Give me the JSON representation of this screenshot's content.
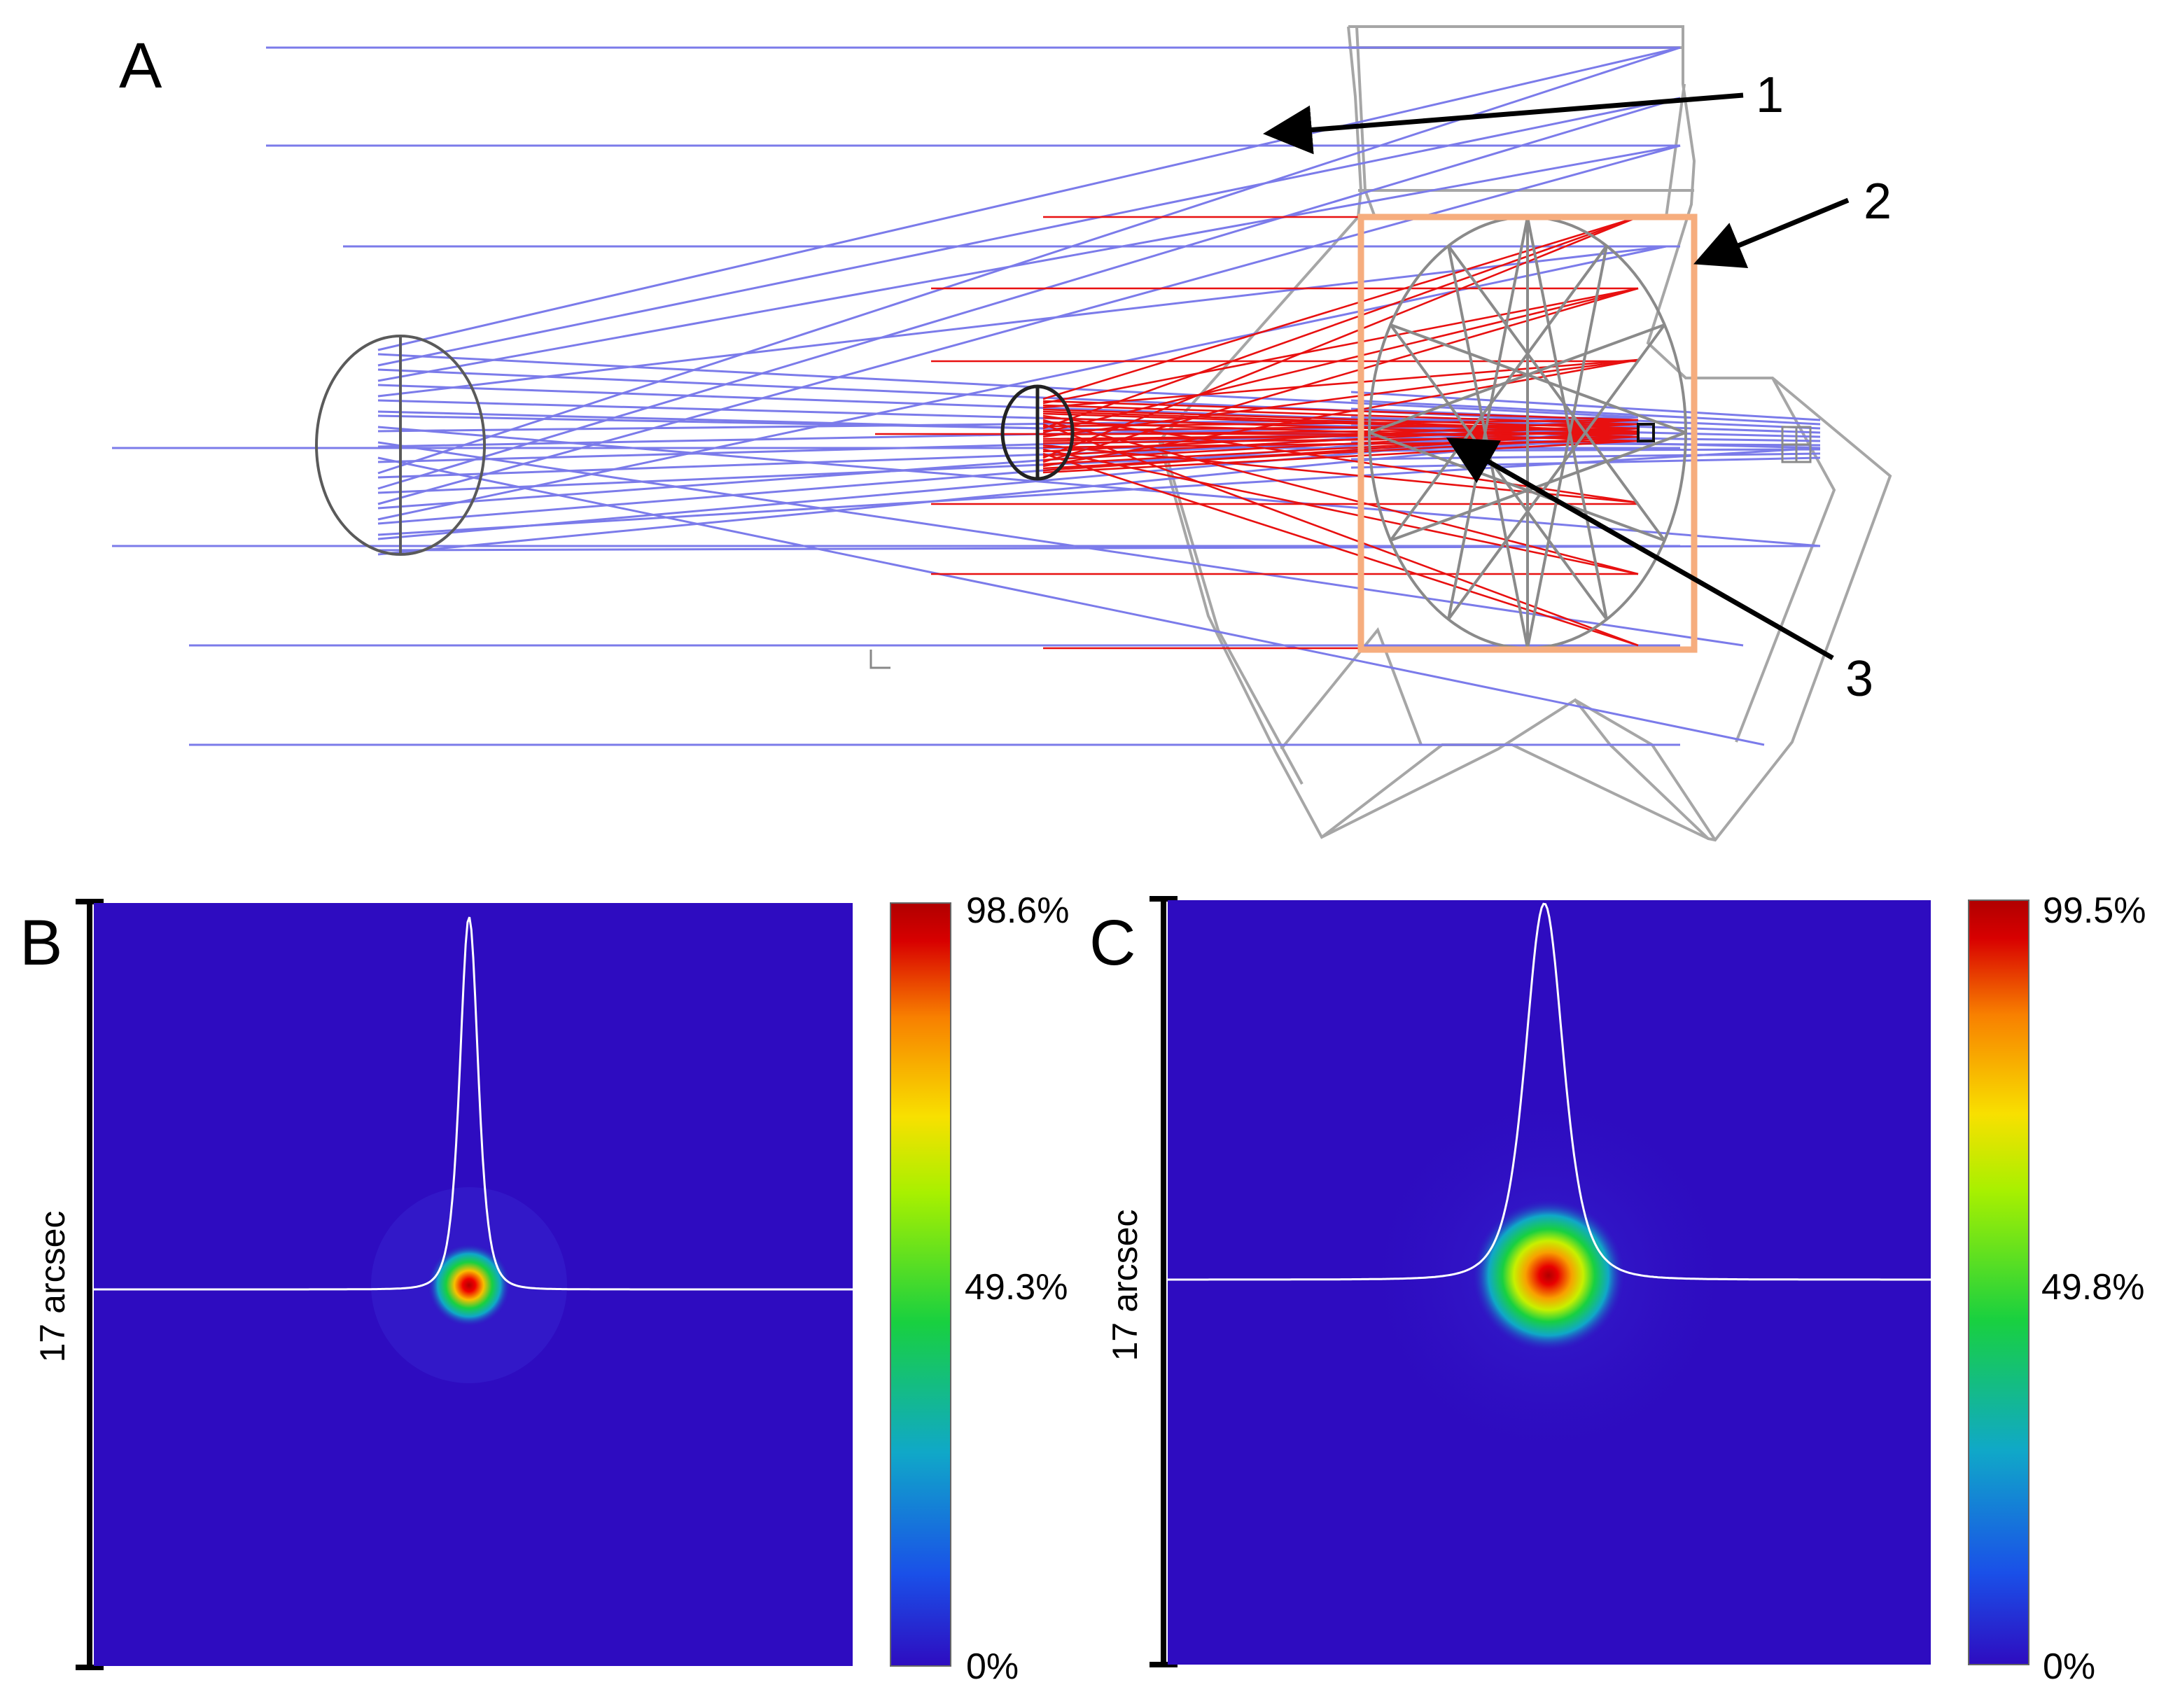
{
  "panel_a": {
    "label": "A",
    "callouts": [
      "1",
      "2",
      "3"
    ],
    "colors": {
      "primary_rays": "#7b7bea",
      "secondary_rays": "#e81010",
      "frame": "#a6a6a6",
      "highlight_box": "#f6ad7e"
    }
  },
  "panel_b": {
    "label": "B",
    "scale_label": "17 arcsec",
    "colorbar": {
      "max": "98.6%",
      "mid": "49.3%",
      "min": "0%"
    },
    "spot_peak": 0.986
  },
  "panel_c": {
    "label": "C",
    "scale_label": "17 arcsec",
    "colorbar": {
      "max": "99.5%",
      "mid": "49.8%",
      "min": "0%"
    },
    "spot_peak": 0.995
  },
  "colormap": [
    "#2e0cc0",
    "#1a50e8",
    "#10a8c8",
    "#18d040",
    "#a8f000",
    "#f8e000",
    "#f88000",
    "#d80000",
    "#b00000"
  ]
}
